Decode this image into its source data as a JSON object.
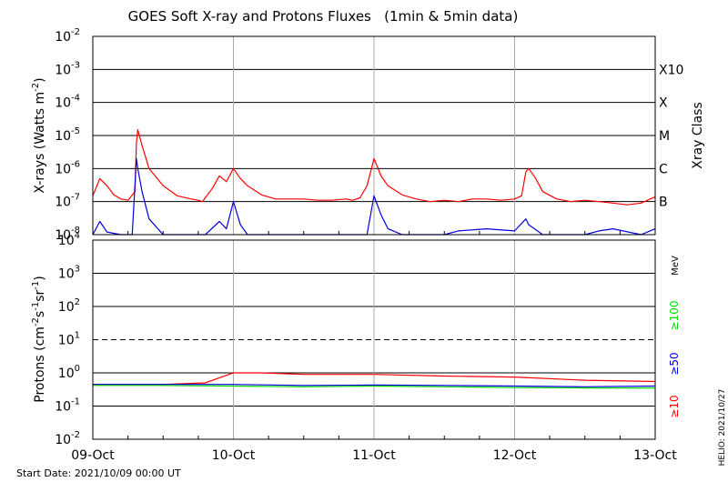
{
  "chart_data": [
    {
      "type": "line",
      "title": "GOES Soft X-ray and Protons Fluxes   (1min & 5min data)",
      "ylabel_parts": [
        "X-rays (Watts m",
        "-2",
        ")"
      ],
      "right_label": "Xray Class",
      "yscale": "log",
      "ylim": [
        1e-08,
        0.01
      ],
      "y_ticks": [
        {
          "base": "10",
          "exp": "-8"
        },
        {
          "base": "10",
          "exp": "-7"
        },
        {
          "base": "10",
          "exp": "-6"
        },
        {
          "base": "10",
          "exp": "-5"
        },
        {
          "base": "10",
          "exp": "-4"
        },
        {
          "base": "10",
          "exp": "-3"
        },
        {
          "base": "10",
          "exp": "-2"
        }
      ],
      "classes": [
        {
          "label": "B",
          "y": 1e-07
        },
        {
          "label": "C",
          "y": 1e-06
        },
        {
          "label": "M",
          "y": 1e-05
        },
        {
          "label": "X",
          "y": 0.0001
        },
        {
          "label": "X10",
          "y": 0.001
        }
      ],
      "series": [
        {
          "color": "#ff0000",
          "x": [
            0.0,
            0.05,
            0.1,
            0.15,
            0.2,
            0.25,
            0.3,
            0.31,
            0.32,
            0.35,
            0.4,
            0.5,
            0.6,
            0.7,
            0.75,
            0.78,
            0.8,
            0.85,
            0.9,
            0.95,
            1.0,
            1.05,
            1.1,
            1.2,
            1.3,
            1.4,
            1.5,
            1.6,
            1.7,
            1.8,
            1.85,
            1.9,
            1.95,
            2.0,
            2.05,
            2.1,
            2.2,
            2.3,
            2.4,
            2.5,
            2.6,
            2.7,
            2.8,
            2.9,
            3.0,
            3.05,
            3.08,
            3.1,
            3.15,
            3.2,
            3.3,
            3.4,
            3.5,
            3.6,
            3.7,
            3.8,
            3.9,
            4.0
          ],
          "y": [
            1.5e-07,
            5e-07,
            3e-07,
            1.6e-07,
            1.2e-07,
            1.1e-07,
            2e-07,
            6e-06,
            1.5e-05,
            5e-06,
            1e-06,
            3e-07,
            1.5e-07,
            1.2e-07,
            1.1e-07,
            1e-07,
            1.3e-07,
            2.5e-07,
            6e-07,
            4e-07,
            1e-06,
            5e-07,
            3e-07,
            1.6e-07,
            1.2e-07,
            1.2e-07,
            1.2e-07,
            1.1e-07,
            1.1e-07,
            1.2e-07,
            1.1e-07,
            1.3e-07,
            3e-07,
            2e-06,
            6e-07,
            3e-07,
            1.6e-07,
            1.2e-07,
            1e-07,
            1.1e-07,
            1e-07,
            1.2e-07,
            1.2e-07,
            1.1e-07,
            1.2e-07,
            1.5e-07,
            8e-07,
            1e-06,
            5e-07,
            2e-07,
            1.2e-07,
            1e-07,
            1.1e-07,
            1e-07,
            9e-08,
            8e-08,
            9e-08,
            1.4e-07
          ]
        },
        {
          "color": "#0000dd",
          "x": [
            0.0,
            0.05,
            0.1,
            0.2,
            0.28,
            0.31,
            0.32,
            0.35,
            0.4,
            0.5,
            0.8,
            0.9,
            0.95,
            1.0,
            1.05,
            1.1,
            1.3,
            1.8,
            1.9,
            1.95,
            2.0,
            2.05,
            2.1,
            2.2,
            2.5,
            2.6,
            2.8,
            3.0,
            3.08,
            3.1,
            3.2,
            3.5,
            3.6,
            3.7,
            3.9,
            4.0
          ],
          "y": [
            1e-08,
            2.5e-08,
            1.2e-08,
            1e-08,
            1e-08,
            2e-06,
            1e-06,
            2e-07,
            3e-08,
            1e-08,
            1e-08,
            2.5e-08,
            1.5e-08,
            1e-07,
            2e-08,
            1e-08,
            1e-08,
            1e-08,
            1e-08,
            1e-08,
            1.5e-07,
            4e-08,
            1.5e-08,
            1e-08,
            1e-08,
            1.3e-08,
            1.5e-08,
            1.3e-08,
            3e-08,
            2e-08,
            1e-08,
            1e-08,
            1.3e-08,
            1.5e-08,
            1e-08,
            1.5e-08
          ]
        }
      ]
    },
    {
      "type": "line",
      "ylabel_parts": [
        "Protons (cm",
        "-2",
        "s",
        "-1",
        "sr",
        "-1",
        ")"
      ],
      "yscale": "log",
      "ylim": [
        0.01,
        10000
      ],
      "y_ticks": [
        {
          "base": "10",
          "exp": "-2"
        },
        {
          "base": "10",
          "exp": "-1"
        },
        {
          "base": "10",
          "exp": "0"
        },
        {
          "base": "10",
          "exp": "1"
        },
        {
          "base": "10",
          "exp": "2"
        },
        {
          "base": "10",
          "exp": "3"
        },
        {
          "base": "10",
          "exp": "4"
        }
      ],
      "threshold": 10,
      "energy_label": "MeV",
      "energy_channels": [
        {
          "label": "≥100",
          "color": "#00dd00"
        },
        {
          "label": "≥50",
          "color": "#0000dd"
        },
        {
          "label": "≥10",
          "color": "#ff0000"
        }
      ],
      "series": [
        {
          "color": "#ff0000",
          "x": [
            0.0,
            0.5,
            0.8,
            1.0,
            1.2,
            1.5,
            2.0,
            2.5,
            3.0,
            3.5,
            4.0
          ],
          "y": [
            0.45,
            0.45,
            0.5,
            1.0,
            1.0,
            0.9,
            0.9,
            0.8,
            0.75,
            0.6,
            0.55
          ]
        },
        {
          "color": "#0000dd",
          "x": [
            0.0,
            0.5,
            1.0,
            1.5,
            2.0,
            2.5,
            3.0,
            3.5,
            4.0
          ],
          "y": [
            0.45,
            0.45,
            0.45,
            0.42,
            0.43,
            0.42,
            0.4,
            0.38,
            0.4
          ]
        },
        {
          "color": "#00dd00",
          "x": [
            0.0,
            0.5,
            1.0,
            1.5,
            2.0,
            2.5,
            3.0,
            3.5,
            4.0
          ],
          "y": [
            0.42,
            0.42,
            0.4,
            0.38,
            0.4,
            0.38,
            0.36,
            0.35,
            0.35
          ]
        }
      ]
    }
  ],
  "x_ticks": [
    "09-Oct",
    "10-Oct",
    "11-Oct",
    "12-Oct",
    "13-Oct"
  ],
  "start_date": "Start Date: 2021/10/09 00:00 UT",
  "credit": "HELIO: 2021/10/27"
}
